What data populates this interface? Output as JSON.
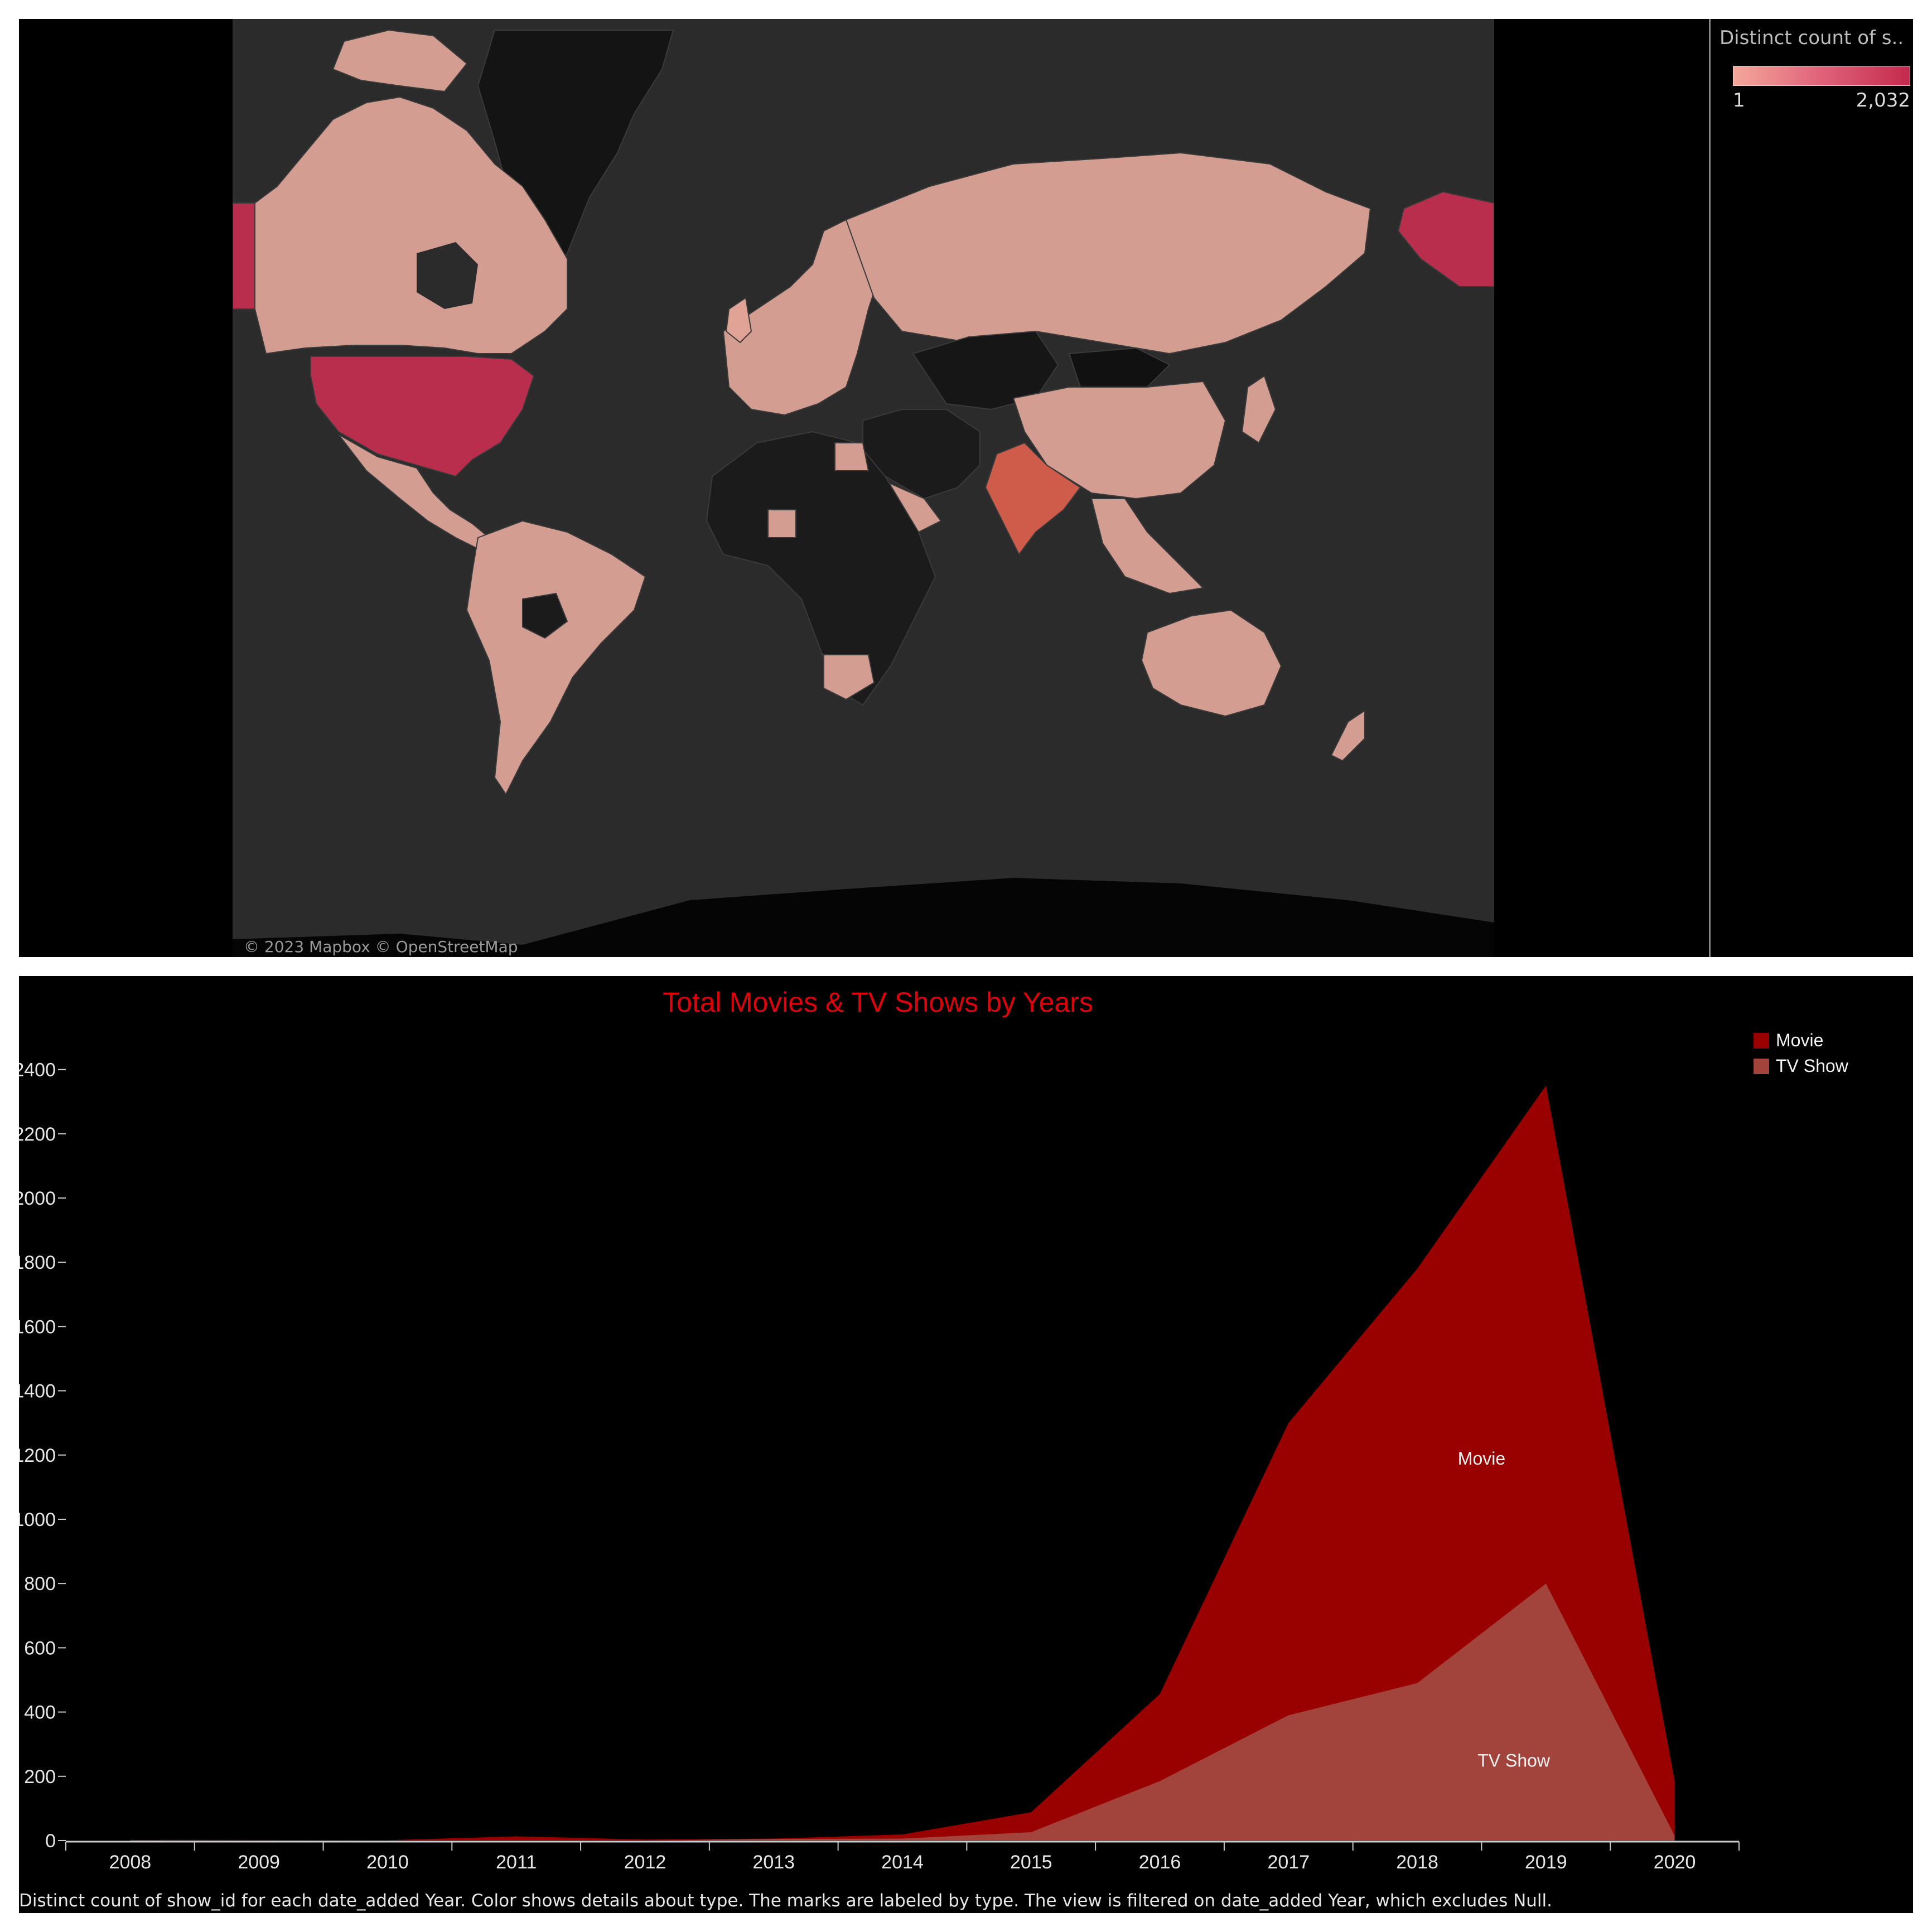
{
  "map": {
    "attribution": "© 2023 Mapbox © OpenStreetMap",
    "legend": {
      "title": "Distinct count of s..",
      "min_label": "1",
      "max_label": "2,032",
      "colors": [
        "#f4a79a",
        "#c42a4d"
      ]
    }
  },
  "chart_data": {
    "type": "area",
    "title": "Total Movies & TV Shows by Years",
    "x": [
      "2008",
      "2009",
      "2010",
      "2011",
      "2012",
      "2013",
      "2014",
      "2015",
      "2016",
      "2017",
      "2018",
      "2019",
      "2020"
    ],
    "stacked": false,
    "series": [
      {
        "name": "Movie",
        "color": "#990000",
        "values": [
          2,
          2,
          1,
          13,
          3,
          6,
          19,
          88,
          456,
          1300,
          1780,
          2350,
          185
        ]
      },
      {
        "name": "TV Show",
        "color": "#a2443c",
        "values": [
          1,
          0,
          0,
          0,
          0,
          5,
          6,
          26,
          185,
          390,
          490,
          800,
          15
        ]
      }
    ],
    "ylim": [
      0,
      2500
    ],
    "yticks": [
      "0",
      "200",
      "400",
      "600",
      "800",
      "1000",
      "1200",
      "1400",
      "1600",
      "1800",
      "2000",
      "2200",
      "2400"
    ],
    "mark_labels": [
      "Movie",
      "TV Show"
    ],
    "legend": {
      "position": "top-right",
      "entries": [
        "Movie",
        "TV Show"
      ]
    },
    "grid": false,
    "footer": "Distinct count of show_id for each date_added Year.  Color shows details about type.  The marks are labeled by type. The view is filtered on date_added Year, which excludes Null."
  }
}
